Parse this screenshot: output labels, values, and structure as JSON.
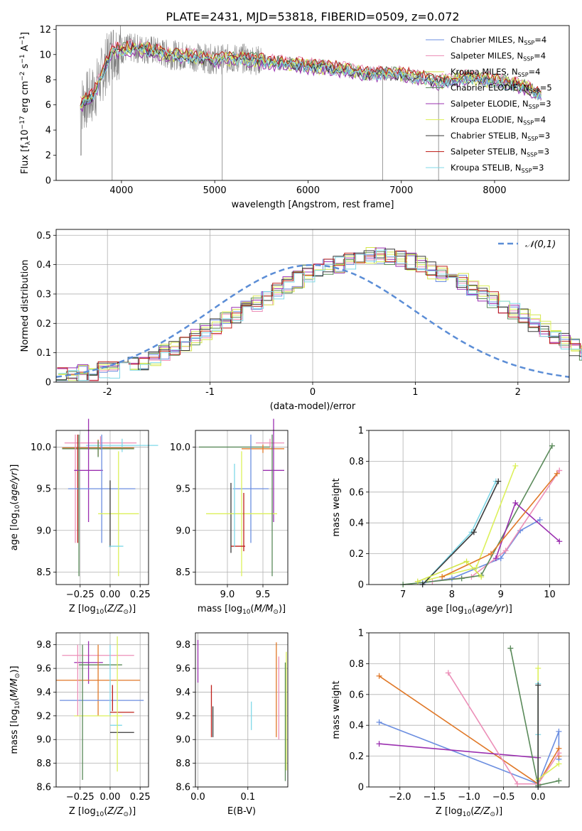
{
  "figure_title": "PLATE=2431, MJD=53818, FIBERID=0509, z=0.072",
  "colors": {
    "Chabrier MILES": "#6b8ee0",
    "Salpeter MILES": "#ec8fb8",
    "Kroupa MILES": "#d4e64a",
    "Chabrier ELODIE": "#5a8a5a",
    "Salpeter ELODIE": "#9b30b0",
    "Kroupa ELODIE": "#dcf05a",
    "Chabrier STELIB": "#3a3a3a",
    "Salpeter STELIB": "#c0201a",
    "Kroupa STELIB": "#7fd8e8",
    "data": "#808080",
    "orange": "#e07828"
  },
  "chart_data": [
    {
      "type": "line",
      "id": "spectrum",
      "title": "PLATE=2431, MJD=53818, FIBERID=0509, z=0.072",
      "xlabel": "wavelength [Angstrom, rest frame]",
      "ylabel": "Flux [f_λ10^-17 erg cm^-2 s^-1 A^-1]",
      "xlim": [
        3300,
        8800
      ],
      "ylim": [
        0,
        12.3
      ],
      "xticks": [
        4000,
        5000,
        6000,
        7000,
        8000
      ],
      "yticks": [
        0,
        2,
        4,
        6,
        8,
        10,
        12
      ],
      "legend_position": "top-right",
      "legend": [
        "Chabrier MILES, N_SSP=4",
        "Salpeter MILES, N_SSP=4",
        "Kroupa MILES, N_SSP=4",
        "Chabrier ELODIE, N_SSP=5",
        "Salpeter ELODIE, N_SSP=3",
        "Kroupa ELODIE, N_SSP=4",
        "Chabrier STELIB, N_SSP=3",
        "Salpeter STELIB, N_SSP=3",
        "Kroupa STELIB, N_SSP=3"
      ],
      "continuum": {
        "x": [
          3560,
          3700,
          3900,
          4100,
          4300,
          4500,
          4800,
          5000,
          5300,
          5600,
          6000,
          6300,
          6600,
          6900,
          7200,
          7400,
          7700,
          8000,
          8300,
          8500
        ],
        "y": [
          6.0,
          6.8,
          10.3,
          10.5,
          10.4,
          10.0,
          9.8,
          9.6,
          9.7,
          9.4,
          9.1,
          8.9,
          8.5,
          8.5,
          8.2,
          7.8,
          8.2,
          7.9,
          7.5,
          6.8
        ]
      }
    },
    {
      "type": "histogram",
      "id": "residuals",
      "xlabel": "(data-model)/error",
      "ylabel": "Normed distribution",
      "xlim": [
        -2.5,
        2.5
      ],
      "ylim": [
        0,
        0.52
      ],
      "xticks": [
        -2,
        -1,
        0,
        1,
        2
      ],
      "yticks": [
        0.0,
        0.1,
        0.2,
        0.3,
        0.4,
        0.5
      ],
      "legend": [
        "𝒩(0,1)"
      ],
      "legend_position": "top-right",
      "bin_width": 0.1,
      "base": [
        0.02,
        0.02,
        0.03,
        0.03,
        0.04,
        0.04,
        0.05,
        0.06,
        0.07,
        0.08,
        0.1,
        0.12,
        0.13,
        0.15,
        0.17,
        0.19,
        0.21,
        0.23,
        0.25,
        0.27,
        0.29,
        0.31,
        0.33,
        0.35,
        0.37,
        0.38,
        0.39,
        0.4,
        0.41,
        0.42,
        0.43,
        0.43,
        0.43,
        0.42,
        0.41,
        0.4,
        0.38,
        0.37,
        0.36,
        0.34,
        0.32,
        0.3,
        0.28,
        0.26,
        0.24,
        0.22,
        0.2,
        0.18,
        0.16,
        0.14,
        0.12,
        0.1,
        0.09,
        0.08,
        0.07,
        0.06,
        0.05,
        0.04,
        0.04,
        0.03,
        0.03,
        0.03,
        0.02,
        0.02,
        0.02,
        0.02,
        0.02,
        0.02,
        0.02,
        0.02
      ],
      "series": [
        "Chabrier MILES",
        "Salpeter MILES",
        "Kroupa MILES",
        "Chabrier ELODIE",
        "Salpeter ELODIE",
        "Kroupa ELODIE",
        "Chabrier STELIB",
        "Salpeter STELIB",
        "Kroupa STELIB"
      ]
    },
    {
      "type": "errorbar",
      "id": "z_age",
      "xlabel": "Z [log10(Z/Z⊙)]",
      "ylabel": "age [log10(age/yr)]",
      "xlim": [
        -0.45,
        0.32
      ],
      "ylim": [
        8.35,
        10.2
      ],
      "xticks": [
        -0.25,
        0.0,
        0.25
      ],
      "xticklabels": [
        "−0.25",
        "0.00",
        "0.25"
      ],
      "yticks": [
        8.5,
        9.0,
        9.5,
        10.0
      ],
      "yticklabels": [
        "8.5",
        "9.0",
        "9.5",
        "10.0"
      ],
      "points": [
        {
          "series": "Salpeter MILES",
          "x": -0.08,
          "xerr": 0.3,
          "y": 10.05,
          "yerr": 0.08
        },
        {
          "series": "Kroupa STELIB",
          "x": 0.1,
          "xerr": 0.3,
          "y": 10.02,
          "yerr": 0.08
        },
        {
          "series": "orange",
          "x": -0.1,
          "xerr": 0.3,
          "y": 9.99,
          "yerr": 0.1
        },
        {
          "series": "Chabrier ELODIE",
          "x": -0.1,
          "xerr": 0.3,
          "y": 9.98,
          "yerr": 0.1
        },
        {
          "series": "Salpeter MILES",
          "x": -0.29,
          "xerr": 0.0,
          "y": 9.5,
          "yerr": 0.65
        },
        {
          "series": "Salpeter STELIB",
          "x": -0.27,
          "xerr": 0.0,
          "y": 9.5,
          "yerr": 0.65
        },
        {
          "series": "Salpeter ELODIE",
          "x": -0.18,
          "xerr": 0.12,
          "y": 9.72,
          "yerr": 0.62
        },
        {
          "series": "Chabrier MILES",
          "x": -0.07,
          "xerr": 0.28,
          "y": 9.5,
          "yerr": 0.65
        },
        {
          "series": "Kroupa ELODIE",
          "x": 0.07,
          "xerr": 0.17,
          "y": 9.2,
          "yerr": 0.75
        },
        {
          "series": "Chabrier ELODIE",
          "x": -0.26,
          "xerr": 0.0,
          "y": 9.3,
          "yerr": 0.85
        },
        {
          "series": "Chabrier STELIB",
          "x": 0.0,
          "xerr": 0.0,
          "y": 9.2,
          "yerr": 0.4
        },
        {
          "series": "Kroupa STELIB",
          "x": 0.05,
          "xerr": 0.06,
          "y": 8.81,
          "yerr": 0.0
        }
      ]
    },
    {
      "type": "errorbar",
      "id": "mass_age",
      "xlabel": "mass [log10(M/M⊙)]",
      "ylabel": "",
      "xlim": [
        8.55,
        9.85
      ],
      "ylim": [
        8.35,
        10.2
      ],
      "xticks": [
        9.0,
        9.5
      ],
      "xticklabels": [
        "9.0",
        "9.5"
      ],
      "yticks": [
        8.5,
        9.0,
        9.5,
        10.0
      ],
      "yticklabels": [
        "8.5",
        "9.0",
        "9.5",
        "10.0"
      ],
      "points": [
        {
          "series": "Chabrier ELODIE",
          "x": 9.1,
          "xerr": 0.5,
          "y": 10.0,
          "yerr": 0.0
        },
        {
          "series": "orange",
          "x": 9.5,
          "xerr": 0.3,
          "y": 9.98,
          "yerr": 0.05
        },
        {
          "series": "Salpeter MILES",
          "x": 9.6,
          "xerr": 0.2,
          "y": 10.05,
          "yerr": 0.05
        },
        {
          "series": "Chabrier STELIB",
          "x": 9.05,
          "xerr": 0.0,
          "y": 9.15,
          "yerr": 0.42
        },
        {
          "series": "Chabrier MILES",
          "x": 9.33,
          "xerr": 0.25,
          "y": 9.5,
          "yerr": 0.65
        },
        {
          "series": "Salpeter ELODIE",
          "x": 9.65,
          "xerr": 0.15,
          "y": 9.72,
          "yerr": 0.62
        },
        {
          "series": "Kroupa ELODIE",
          "x": 9.2,
          "xerr": 0.5,
          "y": 9.2,
          "yerr": 0.75
        },
        {
          "series": "Salpeter STELIB",
          "x": 9.15,
          "xerr": 0.1,
          "y": 8.81,
          "yerr": 0.0
        },
        {
          "series": "Salpeter STELIB",
          "x": 9.23,
          "xerr": 0.0,
          "y": 9.1,
          "yerr": 0.35
        },
        {
          "series": "Chabrier ELODIE",
          "x": 9.63,
          "xerr": 0.0,
          "y": 9.3,
          "yerr": 0.85
        },
        {
          "series": "Kroupa STELIB",
          "x": 9.1,
          "xerr": 0.0,
          "y": 9.3,
          "yerr": 0.5
        }
      ]
    },
    {
      "type": "line",
      "id": "age_weight",
      "xlabel": "age [log10(age/yr)]",
      "ylabel": "mass weight",
      "xlim": [
        6.3,
        10.4
      ],
      "ylim": [
        0,
        1.0
      ],
      "xticks": [
        7,
        8,
        9,
        10
      ],
      "yticks": [
        0.0,
        0.2,
        0.4,
        0.6,
        0.8,
        1.0
      ],
      "series": [
        {
          "name": "Chabrier MILES",
          "x": [
            7.4,
            8.0,
            9.0,
            9.4,
            9.8
          ],
          "y": [
            0.01,
            0.04,
            0.17,
            0.35,
            0.42
          ]
        },
        {
          "name": "Salpeter MILES",
          "x": [
            7.6,
            8.4,
            9.1,
            10.2
          ],
          "y": [
            0.02,
            0.05,
            0.22,
            0.74
          ]
        },
        {
          "name": "Kroupa ELODIE",
          "x": [
            7.5,
            8.5,
            9.3
          ],
          "y": [
            0.03,
            0.11,
            0.77
          ]
        },
        {
          "name": "Chabrier ELODIE",
          "x": [
            7.0,
            8.2,
            8.6,
            10.05
          ],
          "y": [
            0.0,
            0.04,
            0.06,
            0.9
          ]
        },
        {
          "name": "Salpeter ELODIE",
          "x": [
            8.9,
            9.3,
            10.2
          ],
          "y": [
            0.17,
            0.53,
            0.28
          ]
        },
        {
          "name": "orange",
          "x": [
            7.8,
            8.8,
            10.15
          ],
          "y": [
            0.05,
            0.2,
            0.72
          ]
        },
        {
          "name": "Kroupa STELIB",
          "x": [
            7.4,
            8.4,
            8.9
          ],
          "y": [
            0.0,
            0.34,
            0.67
          ]
        },
        {
          "name": "Chabrier STELIB",
          "x": [
            7.4,
            8.45,
            8.95
          ],
          "y": [
            0.0,
            0.34,
            0.67
          ]
        },
        {
          "name": "Kroupa MILES",
          "x": [
            7.3,
            8.3,
            8.6
          ],
          "y": [
            0.02,
            0.15,
            0.05
          ]
        }
      ]
    },
    {
      "type": "errorbar",
      "id": "z_mass",
      "xlabel": "Z [log10(Z/Z⊙)]",
      "ylabel": "mass [log10(M/M⊙)]",
      "xlim": [
        -0.45,
        0.32
      ],
      "ylim": [
        8.6,
        9.9
      ],
      "xticks": [
        -0.25,
        0.0,
        0.25
      ],
      "xticklabels": [
        "−0.25",
        "0.00",
        "0.25"
      ],
      "yticks": [
        8.6,
        8.8,
        9.0,
        9.2,
        9.4,
        9.6,
        9.8
      ],
      "yticklabels": [
        "8.6",
        "8.8",
        "9.0",
        "9.2",
        "9.4",
        "9.6",
        "9.8"
      ],
      "points": [
        {
          "series": "Salpeter MILES",
          "x": -0.1,
          "xerr": 0.3,
          "y": 9.71,
          "yerr": 0.0
        },
        {
          "series": "Salpeter ELODIE",
          "x": -0.18,
          "xerr": 0.12,
          "y": 9.65,
          "yerr": 0.18
        },
        {
          "series": "Chabrier ELODIE",
          "x": -0.08,
          "xerr": 0.18,
          "y": 9.63,
          "yerr": 0.0
        },
        {
          "series": "orange",
          "x": -0.1,
          "xerr": 0.35,
          "y": 9.5,
          "yerr": 0.3
        },
        {
          "series": "Chabrier MILES",
          "x": -0.07,
          "xerr": 0.35,
          "y": 9.33,
          "yerr": 0.0
        },
        {
          "series": "Kroupa ELODIE",
          "x": -0.1,
          "xerr": 0.2,
          "y": 9.2,
          "yerr": 0.0
        },
        {
          "series": "Kroupa STELIB",
          "x": 0.0,
          "xerr": 0.0,
          "y": 9.5,
          "yerr": 0.3
        },
        {
          "series": "Salpeter STELIB",
          "x": 0.1,
          "xerr": 0.1,
          "y": 9.23,
          "yerr": 0.0
        },
        {
          "series": "Salpeter STELIB",
          "x": 0.02,
          "xerr": 0.0,
          "y": 9.35,
          "yerr": 0.11
        },
        {
          "series": "Kroupa STELIB",
          "x": 0.05,
          "xerr": 0.05,
          "y": 9.12,
          "yerr": 0.0
        },
        {
          "series": "Chabrier STELIB",
          "x": 0.1,
          "xerr": 0.1,
          "y": 9.06,
          "yerr": 0.0
        },
        {
          "series": "Chabrier ELODIE",
          "x": -0.23,
          "xerr": 0.0,
          "y": 9.23,
          "yerr": 0.57
        },
        {
          "series": "Kroupa ELODIE",
          "x": 0.06,
          "xerr": 0.0,
          "y": 9.3,
          "yerr": 0.57
        },
        {
          "series": "Salpeter MILES",
          "x": -0.27,
          "xerr": 0.0,
          "y": 9.5,
          "yerr": 0.3
        }
      ]
    },
    {
      "type": "errorbar",
      "id": "ebv_mass",
      "xlabel": "E(B-V)",
      "ylabel": "",
      "xlim": [
        -0.005,
        0.18
      ],
      "ylim": [
        8.6,
        9.9
      ],
      "xticks": [
        0.0,
        0.1
      ],
      "xticklabels": [
        "0.0",
        "0.1"
      ],
      "yticks": [
        8.6,
        8.8,
        9.0,
        9.2,
        9.4,
        9.6,
        9.8
      ],
      "yticklabels": [
        "8.6",
        "8.8",
        "9.0",
        "9.2",
        "9.4",
        "9.6",
        "9.8"
      ],
      "points": [
        {
          "series": "Salpeter ELODIE",
          "x": 0.0,
          "y": 9.66,
          "yerr": 0.18
        },
        {
          "series": "Salpeter STELIB",
          "x": 0.027,
          "y": 9.24,
          "yerr": 0.22
        },
        {
          "series": "Chabrier STELIB",
          "x": 0.03,
          "y": 9.15,
          "yerr": 0.13
        },
        {
          "series": "Kroupa STELIB",
          "x": 0.107,
          "y": 9.2,
          "yerr": 0.12
        },
        {
          "series": "orange",
          "x": 0.157,
          "y": 9.42,
          "yerr": 0.4
        },
        {
          "series": "Salpeter MILES",
          "x": 0.162,
          "y": 9.35,
          "yerr": 0.35
        },
        {
          "series": "Kroupa ELODIE",
          "x": 0.177,
          "y": 9.24,
          "yerr": 0.5
        },
        {
          "series": "Chabrier ELODIE",
          "x": 0.175,
          "y": 9.15,
          "yerr": 0.5
        }
      ]
    },
    {
      "type": "line",
      "id": "z_weight",
      "xlabel": "Z [log10(Z/Z⊙)]",
      "ylabel": "mass weight",
      "xlim": [
        -2.45,
        0.45
      ],
      "ylim": [
        0,
        1.0
      ],
      "xticks": [
        -2.0,
        -1.5,
        -1.0,
        -0.5,
        0.0
      ],
      "xticklabels": [
        "−2.0",
        "−1.5",
        "−1.0",
        "−0.5",
        "0.0"
      ],
      "yticks": [
        0.0,
        0.2,
        0.4,
        0.6,
        0.8,
        1.0
      ],
      "series": [
        {
          "name": "Chabrier MILES",
          "x": [
            -2.3,
            0.0,
            0.3,
            0.3
          ],
          "y": [
            0.42,
            0.02,
            0.36,
            0.18
          ]
        },
        {
          "name": "orange",
          "x": [
            -2.3,
            0.0,
            0.3,
            0.3
          ],
          "y": [
            0.72,
            0.02,
            0.25,
            0.2
          ]
        },
        {
          "name": "Salpeter ELODIE",
          "x": [
            -2.3,
            0.0
          ],
          "y": [
            0.28,
            0.19
          ]
        },
        {
          "name": "Salpeter MILES",
          "x": [
            -1.3,
            -0.3,
            0.0,
            0.3
          ],
          "y": [
            0.74,
            0.02,
            0.02,
            0.22
          ]
        },
        {
          "name": "Chabrier ELODIE",
          "x": [
            -0.4,
            0.0,
            0.3
          ],
          "y": [
            0.9,
            0.01,
            0.04
          ]
        },
        {
          "name": "Kroupa ELODIE",
          "x": [
            0.0,
            0.0,
            0.3
          ],
          "y": [
            0.77,
            0.05,
            0.15
          ]
        },
        {
          "name": "Kroupa STELIB",
          "x": [
            0.0,
            0.0,
            0.0
          ],
          "y": [
            0.67,
            0.34,
            0.0
          ]
        },
        {
          "name": "Chabrier STELIB",
          "x": [
            0.0,
            0.0
          ],
          "y": [
            0.66,
            0.0
          ]
        }
      ]
    }
  ]
}
